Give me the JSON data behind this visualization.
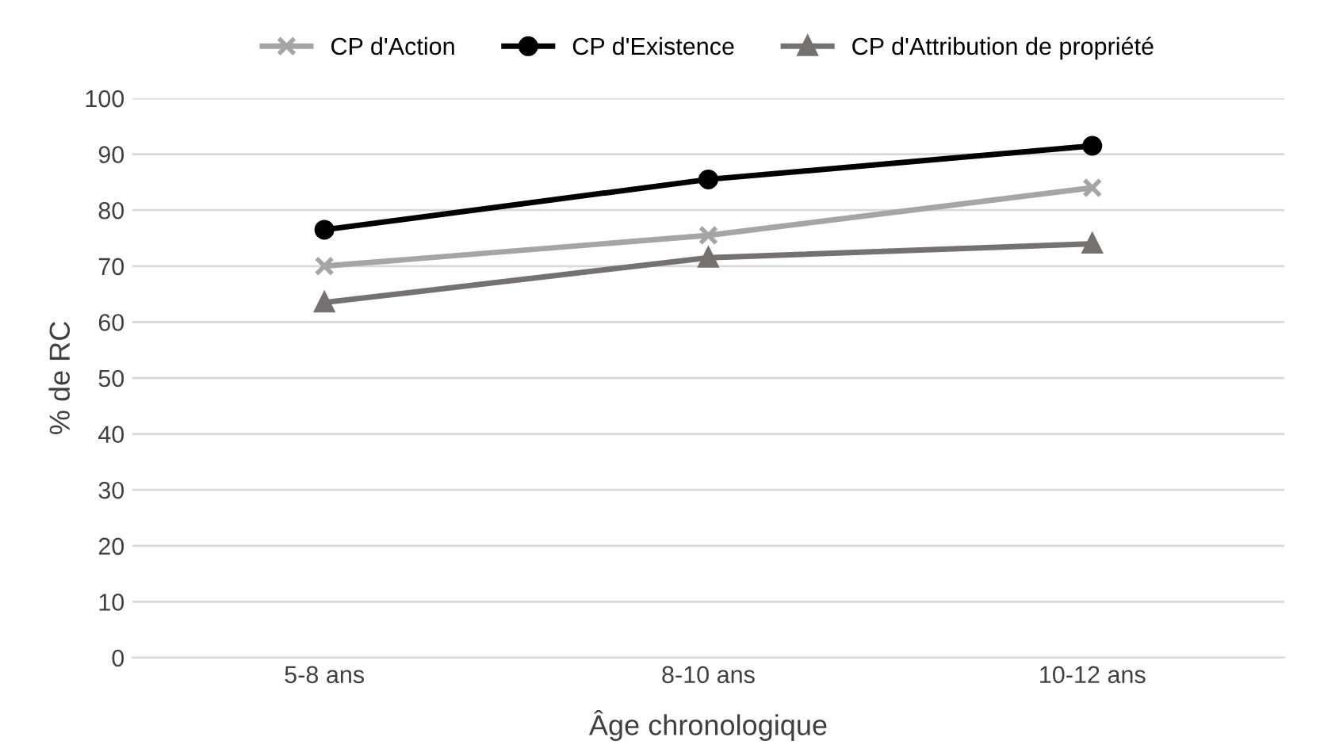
{
  "chart_data": {
    "type": "line",
    "xlabel": "Âge chronologique",
    "ylabel": "% de RC",
    "categories": [
      "5-8 ans",
      "8-10 ans",
      "10-12 ans"
    ],
    "series": [
      {
        "name": "CP d'Action",
        "color": "#a5a5a5",
        "marker": "cross",
        "values": [
          70,
          75.5,
          84
        ]
      },
      {
        "name": "CP d'Existence",
        "color": "#000000",
        "marker": "circle",
        "values": [
          76.5,
          85.5,
          91.5
        ]
      },
      {
        "name": "CP d'Attribution de propriété",
        "color": "#767171",
        "marker": "triangle",
        "values": [
          63.5,
          71.5,
          74
        ]
      }
    ],
    "ylim": [
      0,
      100
    ],
    "yticks": [
      0,
      10,
      20,
      30,
      40,
      50,
      60,
      70,
      80,
      90,
      100
    ],
    "grid": "y",
    "legend": "top",
    "line_style": "solid"
  }
}
